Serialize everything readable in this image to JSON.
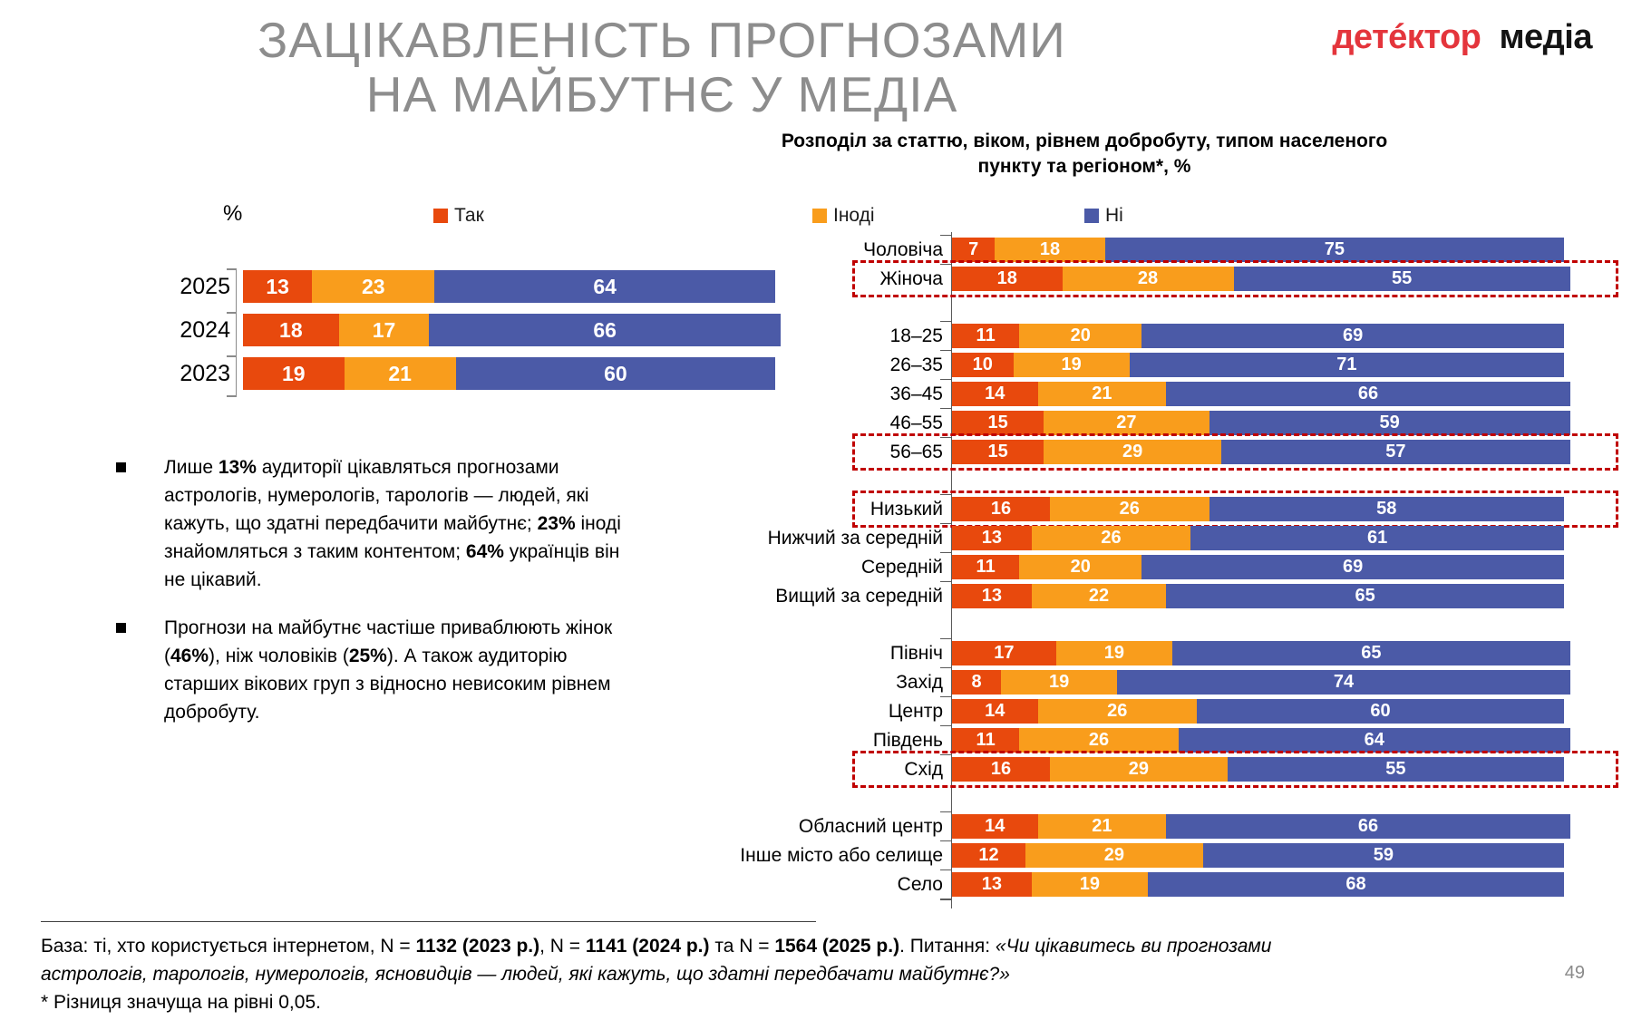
{
  "title": {
    "line1": "ЗАЦІКАВЛЕНІСТЬ ПРОГНОЗАМИ",
    "line2": "НА МАЙБУТНЄ У МЕДІА"
  },
  "logo": {
    "brand_red": "детéктор",
    "brand_dark": "медіа"
  },
  "chart_section": {
    "subtitle": "Розподіл за статтю, віком, рівнем добробуту, типом населеного пункту та регіоном*, %",
    "axis_unit": "%"
  },
  "legend": {
    "items": [
      {
        "label": "Так",
        "color": "#e8490d"
      },
      {
        "label": "Іноді",
        "color": "#f99d1c"
      },
      {
        "label": "Ні",
        "color": "#4b5aa7"
      }
    ]
  },
  "bullets": [
    [
      {
        "text": "Лише "
      },
      {
        "text": "13%",
        "bold": true
      },
      {
        "text": " аудиторії цікавляться прогнозами астрологів, нумерологів, тарологів — людей, які кажуть, що здатні передбачити майбутнє; "
      },
      {
        "text": "23%",
        "bold": true
      },
      {
        "text": " іноді знайомляться з таким контентом; "
      },
      {
        "text": "64%",
        "bold": true
      },
      {
        "text": " українців він не цікавий."
      }
    ],
    [
      {
        "text": "Прогнози на майбутнє частіше приваблюють жінок ("
      },
      {
        "text": "46%",
        "bold": true
      },
      {
        "text": "), ніж чоловіків ("
      },
      {
        "text": "25%",
        "bold": true
      },
      {
        "text": "). А також аудиторію старших вікових груп з відносно невисоким рівнем добробуту."
      }
    ]
  ],
  "footer": {
    "line1_runs": [
      {
        "text": "База: ті, хто користується інтернетом, N = "
      },
      {
        "text": "1132 (2023 р.)",
        "bold": true
      },
      {
        "text": ", N = "
      },
      {
        "text": "1141 (2024 р.)",
        "bold": true
      },
      {
        "text": " та N = "
      },
      {
        "text": "1564 (2025 р.)",
        "bold": true
      },
      {
        "text": ". Питання: "
      },
      {
        "text": "«Чи цікавитесь ви прогнозами астрологів, тарологів, нумерологів, ясновидців — людей, які кажуть, що здатні передбачати майбутнє?»",
        "italic": true
      }
    ],
    "note": "* Різниця значуща на рівні 0,05.",
    "page_number": "49"
  },
  "chart_data": [
    {
      "type": "bar",
      "orientation": "horizontal",
      "stacked": true,
      "xlim": [
        0,
        100
      ],
      "unit": "%",
      "categories": [
        "2025",
        "2024",
        "2023"
      ],
      "series": [
        {
          "name": "Так",
          "color": "#e8490d",
          "values": [
            13,
            18,
            19
          ]
        },
        {
          "name": "Іноді",
          "color": "#f99d1c",
          "values": [
            23,
            17,
            21
          ]
        },
        {
          "name": "Ні",
          "color": "#4b5aa7",
          "values": [
            64,
            66,
            60
          ]
        }
      ]
    },
    {
      "type": "bar",
      "orientation": "horizontal",
      "stacked": true,
      "xlim": [
        0,
        100
      ],
      "unit": "%",
      "title": "Розподіл за статтю, віком, рівнем добробуту, типом населеного пункту та регіоном*, %",
      "series_names": [
        "Так",
        "Іноді",
        "Ні"
      ],
      "highlight_style": "dashed-red-box",
      "groups": [
        {
          "name": "стать",
          "rows": [
            {
              "label": "Чоловіча",
              "values": [
                7,
                18,
                75
              ]
            },
            {
              "label": "Жіноча",
              "values": [
                18,
                28,
                55
              ],
              "highlighted": true
            }
          ]
        },
        {
          "name": "вік",
          "rows": [
            {
              "label": "18–25",
              "values": [
                11,
                20,
                69
              ]
            },
            {
              "label": "26–35",
              "values": [
                10,
                19,
                71
              ]
            },
            {
              "label": "36–45",
              "values": [
                14,
                21,
                66
              ]
            },
            {
              "label": "46–55",
              "values": [
                15,
                27,
                59
              ]
            },
            {
              "label": "56–65",
              "values": [
                15,
                29,
                57
              ],
              "highlighted": true
            }
          ]
        },
        {
          "name": "рівень добробуту",
          "rows": [
            {
              "label": "Низький",
              "values": [
                16,
                26,
                58
              ],
              "highlighted": true
            },
            {
              "label": "Нижчий за середній",
              "values": [
                13,
                26,
                61
              ]
            },
            {
              "label": "Середній",
              "values": [
                11,
                20,
                69
              ]
            },
            {
              "label": "Вищий за середній",
              "values": [
                13,
                22,
                65
              ]
            }
          ]
        },
        {
          "name": "регіон",
          "rows": [
            {
              "label": "Північ",
              "values": [
                17,
                19,
                65
              ]
            },
            {
              "label": "Захід",
              "values": [
                8,
                19,
                74
              ]
            },
            {
              "label": "Центр",
              "values": [
                14,
                26,
                60
              ]
            },
            {
              "label": "Південь",
              "values": [
                11,
                26,
                64
              ]
            },
            {
              "label": "Схід",
              "values": [
                16,
                29,
                55
              ],
              "highlighted": true
            }
          ]
        },
        {
          "name": "тип населеного пункту",
          "rows": [
            {
              "label": "Обласний центр",
              "values": [
                14,
                21,
                66
              ]
            },
            {
              "label": "Інше місто або селище",
              "values": [
                12,
                29,
                59
              ]
            },
            {
              "label": "Село",
              "values": [
                13,
                19,
                68
              ]
            }
          ]
        }
      ]
    }
  ]
}
